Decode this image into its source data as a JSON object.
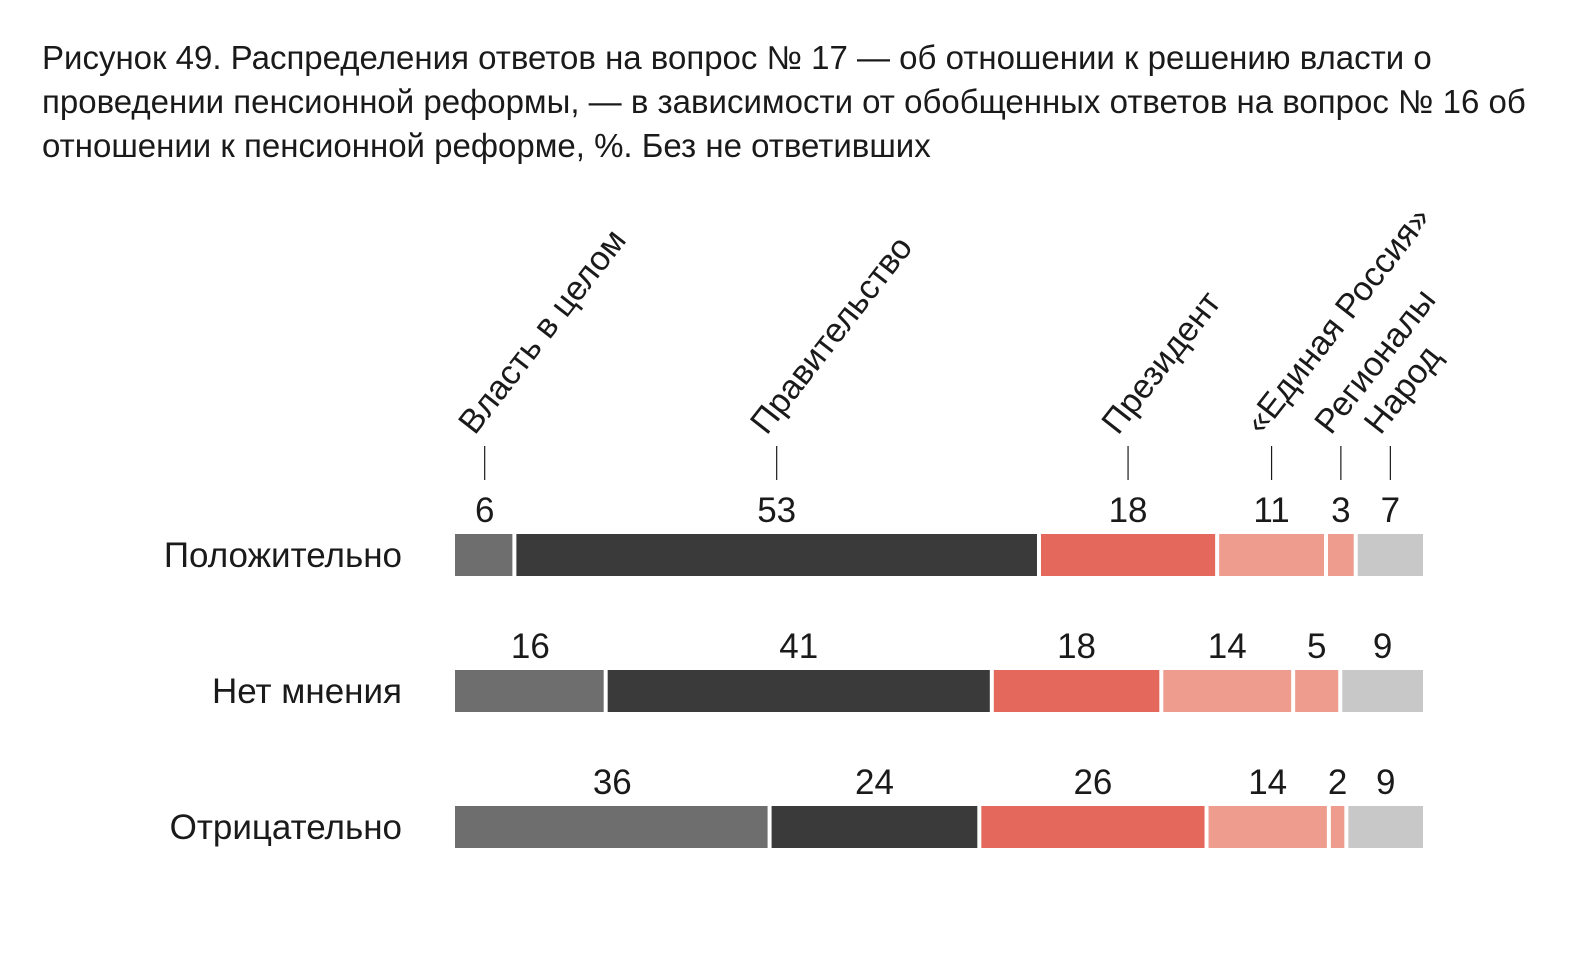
{
  "title": "Рисунок 49. Распределения ответов на вопрос № 17 — об отношении к решению власти о проведении пенсионной реформы, — в зависимости от обобщенных ответов на вопрос № 16 об отношении к пенсионной реформе, %. Без не ответивших",
  "chart_data": {
    "type": "bar",
    "stacked": true,
    "orientation": "horizontal",
    "title": "Рисунок 49. Распределения ответов на вопрос № 17 — об отношении к решению власти о проведении пенсионной реформы, — в зависимости от обобщенных ответов на вопрос № 16 об отношении к пенсионной реформе, %. Без не ответивших",
    "categories": [
      "Положительно",
      "Нет мнения",
      "Отрицательно"
    ],
    "series": [
      {
        "name": "Власть в целом",
        "values": [
          6,
          16,
          36
        ],
        "color": "#6e6e6e"
      },
      {
        "name": "Правительство",
        "values": [
          53,
          41,
          24
        ],
        "color": "#3a3a3a"
      },
      {
        "name": "Президент",
        "values": [
          18,
          18,
          26
        ],
        "color": "#e4685c"
      },
      {
        "name": "«Единая Россия»",
        "values": [
          11,
          14,
          14
        ],
        "color": "#ee9c8e"
      },
      {
        "name": "Регионалы",
        "values": [
          3,
          5,
          2
        ],
        "color": "#ee9c8e"
      },
      {
        "name": "Народ",
        "values": [
          7,
          9,
          9
        ],
        "color": "#c8c8c8"
      }
    ],
    "legend": "rotated labels above the first bar",
    "grid": false
  }
}
